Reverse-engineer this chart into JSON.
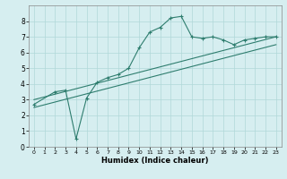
{
  "xlabel": "Humidex (Indice chaleur)",
  "ylabel": "",
  "bg_color": "#d6eef0",
  "grid_color": "#b0d8d8",
  "line_color": "#2e7d6e",
  "xlim": [
    -0.5,
    23.5
  ],
  "ylim": [
    0,
    9
  ],
  "xticks": [
    0,
    1,
    2,
    3,
    4,
    5,
    6,
    7,
    8,
    9,
    10,
    11,
    12,
    13,
    14,
    15,
    16,
    17,
    18,
    19,
    20,
    21,
    22,
    23
  ],
  "yticks": [
    0,
    1,
    2,
    3,
    4,
    5,
    6,
    7,
    8
  ],
  "curve1_x": [
    0,
    2,
    3,
    4,
    5,
    6,
    7,
    8,
    9,
    10,
    11,
    12,
    13,
    14,
    15,
    16,
    17,
    18,
    19,
    20,
    21,
    22,
    23
  ],
  "curve1_y": [
    2.7,
    3.5,
    3.6,
    0.5,
    3.1,
    4.1,
    4.4,
    4.6,
    5.0,
    6.3,
    7.3,
    7.6,
    8.2,
    8.3,
    7.0,
    6.9,
    7.0,
    6.8,
    6.5,
    6.8,
    6.9,
    7.0,
    7.0
  ],
  "line2_x": [
    0,
    23
  ],
  "line2_y": [
    3.0,
    7.0
  ],
  "line3_x": [
    0,
    23
  ],
  "line3_y": [
    2.5,
    6.5
  ],
  "tick_fontsize_x": 4.5,
  "tick_fontsize_y": 5.5,
  "xlabel_fontsize": 6.0
}
